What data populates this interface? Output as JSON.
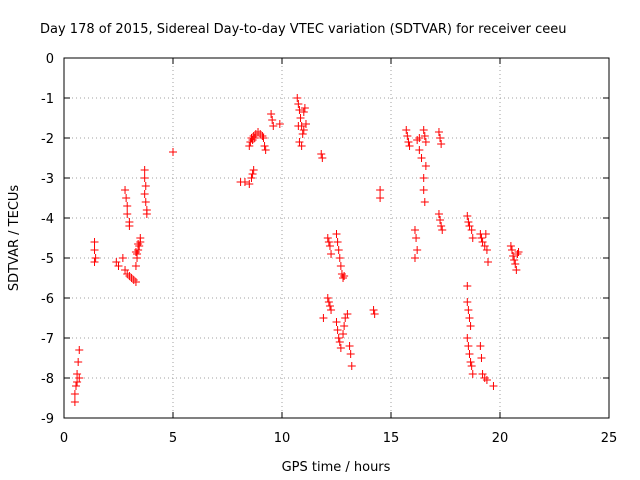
{
  "chart_data": {
    "type": "scatter",
    "title": "Day 178 of 2015, Sidereal Day-to-day VTEC variation (SDTVAR) for receiver ceeu",
    "xlabel": "GPS time / hours",
    "ylabel": "SDTVAR / TECUs",
    "xlim": [
      0,
      25
    ],
    "ylim": [
      -9,
      0
    ],
    "xticks": [
      0,
      5,
      10,
      15,
      20,
      25
    ],
    "yticks": [
      0,
      -1,
      -2,
      -3,
      -4,
      -5,
      -6,
      -7,
      -8,
      -9
    ],
    "xtick_labels": [
      "0",
      "5",
      "10",
      "15",
      "20",
      "25"
    ],
    "ytick_labels": [
      "0",
      "-1",
      "-2",
      "-3",
      "-4",
      "-5",
      "-6",
      "-7",
      "-8",
      "-9"
    ],
    "grid": true,
    "marker": "+",
    "color": "#ff0000",
    "series": [
      {
        "name": "ceeu",
        "points": [
          [
            0.5,
            -8.6
          ],
          [
            0.5,
            -8.4
          ],
          [
            0.55,
            -8.2
          ],
          [
            0.6,
            -8.1
          ],
          [
            0.6,
            -7.9
          ],
          [
            0.65,
            -7.6
          ],
          [
            0.7,
            -7.3
          ],
          [
            0.7,
            -8.0
          ],
          [
            1.4,
            -4.6
          ],
          [
            1.4,
            -4.8
          ],
          [
            1.45,
            -5.0
          ],
          [
            1.4,
            -5.1
          ],
          [
            2.4,
            -5.1
          ],
          [
            2.5,
            -5.2
          ],
          [
            2.7,
            -5.0
          ],
          [
            2.8,
            -5.3
          ],
          [
            2.9,
            -5.4
          ],
          [
            3.0,
            -5.45
          ],
          [
            3.1,
            -5.5
          ],
          [
            3.2,
            -5.55
          ],
          [
            3.3,
            -5.6
          ],
          [
            2.8,
            -3.3
          ],
          [
            2.85,
            -3.5
          ],
          [
            2.9,
            -3.7
          ],
          [
            2.9,
            -3.9
          ],
          [
            3.0,
            -4.1
          ],
          [
            3.0,
            -4.2
          ],
          [
            3.3,
            -5.2
          ],
          [
            3.35,
            -5.0
          ],
          [
            3.35,
            -4.9
          ],
          [
            3.4,
            -4.8
          ],
          [
            3.45,
            -4.7
          ],
          [
            3.5,
            -4.6
          ],
          [
            3.5,
            -4.5
          ],
          [
            3.3,
            -4.85
          ],
          [
            3.4,
            -4.65
          ],
          [
            3.7,
            -2.8
          ],
          [
            3.7,
            -3.0
          ],
          [
            3.75,
            -3.2
          ],
          [
            3.7,
            -3.4
          ],
          [
            3.75,
            -3.6
          ],
          [
            3.8,
            -3.8
          ],
          [
            3.8,
            -3.9
          ],
          [
            5.0,
            -2.35
          ],
          [
            8.1,
            -3.1
          ],
          [
            8.3,
            -3.1
          ],
          [
            8.5,
            -3.15
          ],
          [
            8.6,
            -3.0
          ],
          [
            8.65,
            -2.9
          ],
          [
            8.7,
            -2.8
          ],
          [
            8.5,
            -2.2
          ],
          [
            8.55,
            -2.1
          ],
          [
            8.6,
            -2.0
          ],
          [
            8.7,
            -1.95
          ],
          [
            8.8,
            -1.9
          ],
          [
            8.9,
            -1.85
          ],
          [
            9.0,
            -1.9
          ],
          [
            9.1,
            -1.95
          ],
          [
            9.15,
            -2.0
          ],
          [
            9.2,
            -2.2
          ],
          [
            9.25,
            -2.3
          ],
          [
            8.65,
            -2.05
          ],
          [
            8.75,
            -2.0
          ],
          [
            9.5,
            -1.4
          ],
          [
            9.55,
            -1.55
          ],
          [
            9.6,
            -1.7
          ],
          [
            9.9,
            -1.65
          ],
          [
            10.7,
            -1.0
          ],
          [
            10.75,
            -1.15
          ],
          [
            10.8,
            -1.3
          ],
          [
            10.85,
            -1.5
          ],
          [
            10.9,
            -1.7
          ],
          [
            10.95,
            -1.9
          ],
          [
            10.8,
            -2.1
          ],
          [
            10.9,
            -2.2
          ],
          [
            11.0,
            -1.35
          ],
          [
            11.05,
            -1.25
          ],
          [
            11.0,
            -1.8
          ],
          [
            11.1,
            -1.65
          ],
          [
            10.75,
            -1.7
          ],
          [
            11.8,
            -2.4
          ],
          [
            11.85,
            -2.5
          ],
          [
            12.1,
            -4.5
          ],
          [
            12.15,
            -4.6
          ],
          [
            12.2,
            -4.7
          ],
          [
            12.25,
            -4.9
          ],
          [
            12.1,
            -6.0
          ],
          [
            12.15,
            -6.1
          ],
          [
            12.2,
            -6.2
          ],
          [
            12.25,
            -6.3
          ],
          [
            11.9,
            -6.5
          ],
          [
            12.5,
            -4.4
          ],
          [
            12.55,
            -4.6
          ],
          [
            12.6,
            -4.8
          ],
          [
            12.65,
            -5.0
          ],
          [
            12.7,
            -5.2
          ],
          [
            12.75,
            -5.4
          ],
          [
            12.8,
            -5.5
          ],
          [
            12.85,
            -5.45
          ],
          [
            12.5,
            -6.6
          ],
          [
            12.55,
            -6.8
          ],
          [
            12.6,
            -7.0
          ],
          [
            12.65,
            -7.1
          ],
          [
            12.7,
            -7.25
          ],
          [
            12.8,
            -6.9
          ],
          [
            12.85,
            -6.7
          ],
          [
            12.9,
            -6.5
          ],
          [
            13.0,
            -6.4
          ],
          [
            13.1,
            -7.2
          ],
          [
            13.15,
            -7.4
          ],
          [
            13.2,
            -7.7
          ],
          [
            14.2,
            -6.3
          ],
          [
            14.25,
            -6.4
          ],
          [
            14.5,
            -3.3
          ],
          [
            14.5,
            -3.5
          ],
          [
            15.7,
            -1.8
          ],
          [
            15.75,
            -1.95
          ],
          [
            15.8,
            -2.1
          ],
          [
            15.85,
            -2.2
          ],
          [
            16.2,
            -2.05
          ],
          [
            16.3,
            -2.3
          ],
          [
            16.4,
            -2.5
          ],
          [
            16.3,
            -2.0
          ],
          [
            16.1,
            -4.3
          ],
          [
            16.15,
            -4.5
          ],
          [
            16.2,
            -4.8
          ],
          [
            16.1,
            -5.0
          ],
          [
            16.5,
            -1.8
          ],
          [
            16.55,
            -1.95
          ],
          [
            16.6,
            -2.1
          ],
          [
            16.6,
            -2.7
          ],
          [
            16.5,
            -3.0
          ],
          [
            16.5,
            -3.3
          ],
          [
            16.55,
            -3.6
          ],
          [
            17.2,
            -1.85
          ],
          [
            17.25,
            -2.0
          ],
          [
            17.3,
            -2.15
          ],
          [
            17.2,
            -3.9
          ],
          [
            17.25,
            -4.05
          ],
          [
            17.3,
            -4.2
          ],
          [
            17.35,
            -4.3
          ],
          [
            18.5,
            -3.95
          ],
          [
            18.55,
            -4.1
          ],
          [
            18.6,
            -4.2
          ],
          [
            18.7,
            -4.3
          ],
          [
            18.75,
            -4.5
          ],
          [
            18.5,
            -5.7
          ],
          [
            18.5,
            -6.1
          ],
          [
            18.55,
            -6.3
          ],
          [
            18.6,
            -6.5
          ],
          [
            18.65,
            -6.7
          ],
          [
            18.5,
            -7.0
          ],
          [
            18.55,
            -7.2
          ],
          [
            18.6,
            -7.4
          ],
          [
            18.65,
            -7.6
          ],
          [
            18.7,
            -7.7
          ],
          [
            18.75,
            -7.9
          ],
          [
            19.1,
            -7.2
          ],
          [
            19.15,
            -7.5
          ],
          [
            19.2,
            -7.9
          ],
          [
            19.3,
            -8.0
          ],
          [
            19.4,
            -8.05
          ],
          [
            19.7,
            -8.2
          ],
          [
            19.1,
            -4.4
          ],
          [
            19.15,
            -4.5
          ],
          [
            19.2,
            -4.6
          ],
          [
            19.3,
            -4.7
          ],
          [
            19.35,
            -4.4
          ],
          [
            19.4,
            -4.8
          ],
          [
            19.45,
            -5.1
          ],
          [
            20.5,
            -4.7
          ],
          [
            20.55,
            -4.8
          ],
          [
            20.6,
            -4.95
          ],
          [
            20.65,
            -5.05
          ],
          [
            20.7,
            -5.15
          ],
          [
            20.75,
            -5.3
          ],
          [
            20.8,
            -4.9
          ],
          [
            20.85,
            -4.85
          ]
        ]
      }
    ]
  }
}
